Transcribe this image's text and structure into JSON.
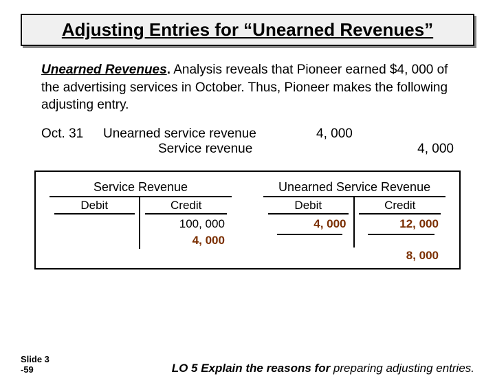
{
  "title": "Adjusting Entries for “Unearned Revenues”",
  "lead": "Unearned Revenues",
  "body": " Analysis reveals that Pioneer earned $4, 000 of the advertising services in October. Thus, Pioneer makes the following adjusting entry.",
  "journal": {
    "date": "Oct. 31",
    "debit_account": "Unearned service revenue",
    "credit_account": "Service revenue",
    "debit_amount": "4, 000",
    "credit_amount": "4, 000"
  },
  "t_accounts": {
    "left": {
      "title": "Service Revenue",
      "debit_header": "Debit",
      "credit_header": "Credit",
      "debit_entries": [],
      "credit_entries": [
        "100, 000",
        "4, 000"
      ],
      "credit_entries_bold_color": [
        false,
        true
      ],
      "balance": null
    },
    "right": {
      "title": "Unearned Service Revenue",
      "debit_header": "Debit",
      "credit_header": "Credit",
      "debit_entries": [
        "4, 000"
      ],
      "debit_entries_bold": [
        true
      ],
      "credit_entries": [
        "12, 000"
      ],
      "balance": "8, 000"
    }
  },
  "footer": {
    "slide_label": "Slide 3",
    "slide_sub": "-59",
    "lo_head": "LO 5  Explain the reasons for ",
    "lo_rest": "preparing adjusting entries."
  },
  "colors": {
    "accent": "#7a2e00",
    "border": "#000000",
    "title_bg": "#f0f0f0",
    "title_shadow": "#888888"
  }
}
